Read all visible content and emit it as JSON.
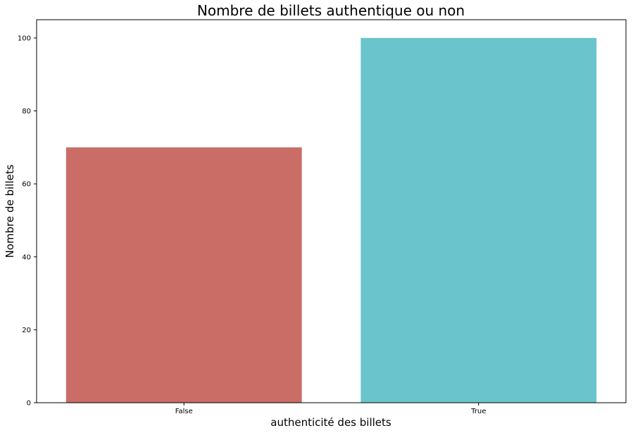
{
  "chart_data": {
    "type": "bar",
    "title": "Nombre de billets authentique ou non",
    "xlabel": "authenticité des billets",
    "ylabel": "Nombre de billets",
    "categories": [
      "False",
      "True"
    ],
    "values": [
      70,
      100
    ],
    "colors": [
      "#c96d66",
      "#69c4cb"
    ],
    "ylim": [
      0,
      105
    ],
    "yticks": [
      0,
      20,
      40,
      60,
      80,
      100
    ],
    "grid": false
  }
}
